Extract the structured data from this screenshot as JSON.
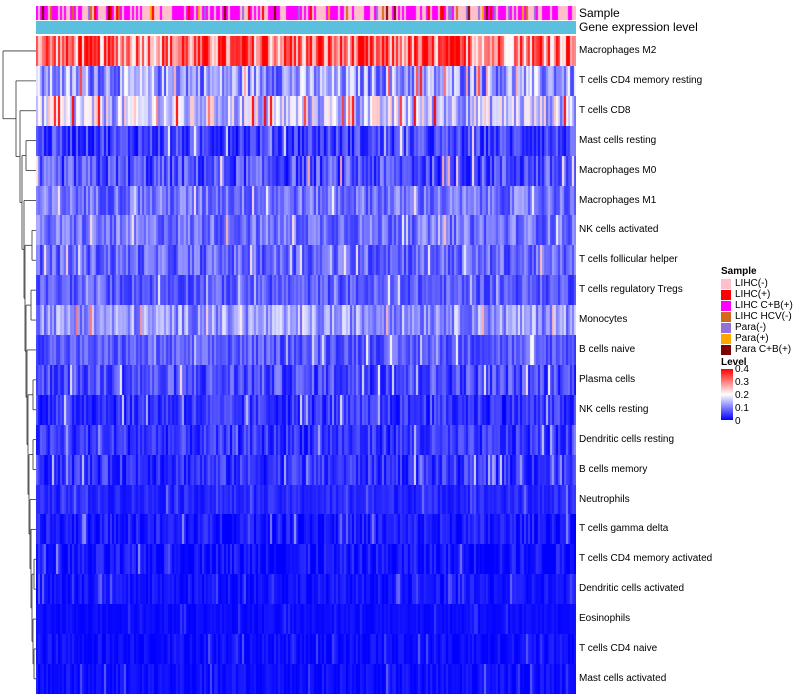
{
  "chart_data": {
    "type": "heatmap",
    "title": "",
    "column_annotations": [
      {
        "name": "Sample",
        "label": "Sample"
      },
      {
        "name": "Gene expression level",
        "label": "Gene expression level"
      }
    ],
    "rows": [
      "Macrophages M2",
      "T cells CD4 memory resting",
      "T cells CD8",
      "Mast cells resting",
      "Macrophages M0",
      "Macrophages M1",
      "NK cells activated",
      "T cells follicular helper",
      "T cells regulatory  Tregs",
      "Monocytes",
      "B cells naive",
      "Plasma cells",
      "NK cells resting",
      "Dendritic cells resting",
      "B cells memory",
      "Neutrophils",
      "T cells gamma delta",
      "T cells CD4 memory activated",
      "Dendritic cells activated",
      "Eosinophils",
      "T cells CD4 naive",
      "Mast cells activated"
    ],
    "row_mean_level": [
      0.31,
      0.12,
      0.16,
      0.05,
      0.06,
      0.09,
      0.09,
      0.08,
      0.07,
      0.12,
      0.07,
      0.06,
      0.04,
      0.04,
      0.04,
      0.03,
      0.02,
      0.015,
      0.015,
      0.01,
      0.01,
      0.01
    ],
    "row_variability": [
      0.12,
      0.08,
      0.09,
      0.05,
      0.06,
      0.05,
      0.05,
      0.05,
      0.04,
      0.06,
      0.04,
      0.05,
      0.04,
      0.04,
      0.04,
      0.02,
      0.03,
      0.03,
      0.02,
      0.01,
      0.02,
      0.02
    ],
    "n_samples": 270,
    "legend": {
      "sample_title": "Sample",
      "sample_groups": [
        {
          "label": "LIHC(-)",
          "color": "#ffc0cb"
        },
        {
          "label": "LIHC(+)",
          "color": "#ff0000"
        },
        {
          "label": "LIHC C+B(+)",
          "color": "#ff00ff"
        },
        {
          "label": "LIHC HCV(-)",
          "color": "#d2691e"
        },
        {
          "label": "Para(-)",
          "color": "#9370db"
        },
        {
          "label": "Para(+)",
          "color": "#ffa500"
        },
        {
          "label": "Para C+B(+)",
          "color": "#800000"
        }
      ],
      "level_title": "Level",
      "level_ticks": [
        "0.4",
        "0.3",
        "0.2",
        "0.1",
        "0"
      ],
      "level_range": [
        0,
        0.4
      ],
      "level_colors": [
        "#0000ff",
        "#ffffff",
        "#ff0000"
      ]
    },
    "expression_annotation_color": "#5bc0de"
  }
}
